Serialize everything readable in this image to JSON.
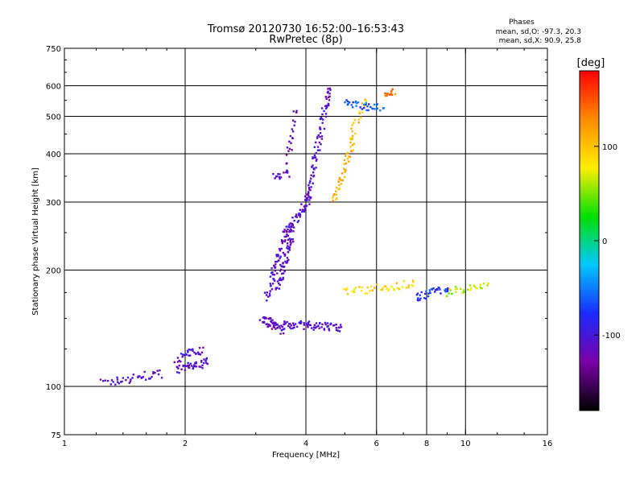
{
  "title": {
    "line1": "Tromsø 20120730 16:52:00–16:53:43",
    "line2": "RwPretec (8p)"
  },
  "phase_box": {
    "heading": "Phases",
    "line1": "mean, sd,O: -97.3, 20.3",
    "line2": "mean, sd,X:  90.9, 25.8"
  },
  "colorbar": {
    "unit": "[deg]",
    "ticks": [
      {
        "value": 100,
        "label": "100"
      },
      {
        "value": 0,
        "label": "0"
      },
      {
        "value": -100,
        "label": "-100"
      }
    ],
    "range": [
      -180,
      180
    ],
    "colors": [
      "#000000",
      "#7a00a8",
      "#1b2aff",
      "#00c8ff",
      "#00e000",
      "#ffee00",
      "#ff8c00",
      "#ff0000"
    ]
  },
  "chart_data": {
    "type": "scatter",
    "xlabel": "Frequency [MHz]",
    "ylabel": "Stationary phase Virtual Height [km]",
    "xscale": "log",
    "yscale": "log",
    "xlim": [
      1,
      16
    ],
    "ylim": [
      75,
      750
    ],
    "grid": true,
    "xticks": [
      1,
      2,
      4,
      6,
      8,
      10,
      16
    ],
    "xtick_labels": [
      "1",
      "2",
      "4",
      "6",
      "8",
      "10",
      "16"
    ],
    "yticks": [
      75,
      100,
      200,
      300,
      400,
      500,
      600,
      750
    ],
    "ytick_labels": [
      "75",
      "100",
      "200",
      "300",
      "400",
      "500",
      "600",
      "750"
    ],
    "vgrid": [
      2,
      4,
      6,
      8,
      10
    ],
    "hgrid": [
      100,
      200,
      300,
      400,
      500,
      600
    ],
    "series": [
      {
        "segments": [
          {
            "x0": 1.25,
            "x1": 1.75,
            "y0": 102,
            "y1": 108,
            "phase": -110,
            "n": 40
          },
          {
            "x0": 1.9,
            "x1": 2.3,
            "y0": 110,
            "y1": 116,
            "phase": -110,
            "n": 40
          },
          {
            "x0": 1.9,
            "x1": 2.2,
            "y0": 118,
            "y1": 125,
            "phase": -110,
            "n": 30
          },
          {
            "x0": 3.1,
            "x1": 3.5,
            "y0": 150,
            "y1": 140,
            "phase": -115,
            "n": 50
          },
          {
            "x0": 3.5,
            "x1": 4.9,
            "y0": 145,
            "y1": 142,
            "phase": -105,
            "n": 70
          },
          {
            "x0": 3.2,
            "x1": 3.6,
            "y0": 170,
            "y1": 260,
            "phase": -110,
            "n": 60
          },
          {
            "x0": 3.4,
            "x1": 3.7,
            "y0": 180,
            "y1": 250,
            "phase": -110,
            "n": 60
          },
          {
            "x0": 3.6,
            "x1": 4.1,
            "y0": 250,
            "y1": 310,
            "phase": -110,
            "n": 50
          },
          {
            "x0": 4.0,
            "x1": 4.6,
            "y0": 300,
            "y1": 600,
            "phase": -110,
            "n": 80
          },
          {
            "x0": 3.35,
            "x1": 3.6,
            "y0": 350,
            "y1": 355,
            "phase": -110,
            "n": 15
          },
          {
            "x0": 3.6,
            "x1": 3.75,
            "y0": 380,
            "y1": 520,
            "phase": -120,
            "n": 20
          },
          {
            "x0": 4.7,
            "x1": 5.2,
            "y0": 300,
            "y1": 420,
            "phase": 110,
            "n": 40
          },
          {
            "x0": 5.1,
            "x1": 5.6,
            "y0": 420,
            "y1": 560,
            "phase": 95,
            "n": 25
          },
          {
            "x0": 5.0,
            "x1": 6.2,
            "y0": 540,
            "y1": 525,
            "phase": -60,
            "n": 35
          },
          {
            "x0": 6.3,
            "x1": 6.6,
            "y0": 560,
            "y1": 580,
            "phase": 140,
            "n": 15
          },
          {
            "x0": 5.0,
            "x1": 7.5,
            "y0": 175,
            "y1": 185,
            "phase": 90,
            "n": 45
          },
          {
            "x0": 7.5,
            "x1": 9.0,
            "y0": 170,
            "y1": 180,
            "phase": -80,
            "n": 35
          },
          {
            "x0": 9.0,
            "x1": 11.5,
            "y0": 175,
            "y1": 185,
            "phase": 60,
            "n": 30
          }
        ]
      }
    ]
  }
}
